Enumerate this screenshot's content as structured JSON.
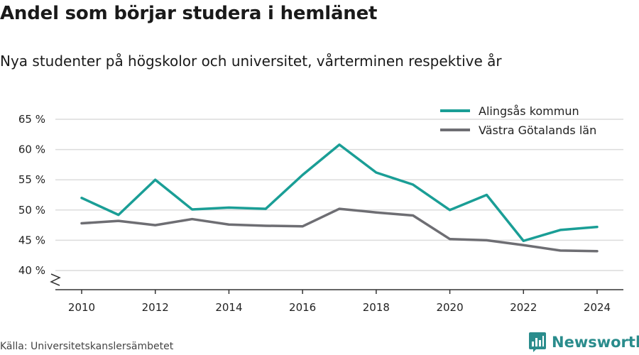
{
  "title": "Andel som börjar studera i hemlänet",
  "subtitle": "Nya studenter på högskolor och universitet, vårterminen respektive år",
  "source": "Källa: Universitetskanslersämbetet",
  "brand": "Newsworthy",
  "chart_data": {
    "type": "line",
    "x": [
      2010,
      2011,
      2012,
      2013,
      2014,
      2015,
      2016,
      2017,
      2018,
      2019,
      2020,
      2021,
      2022,
      2023,
      2024
    ],
    "series": [
      {
        "name": "Alingsås kommun",
        "color": "#1a9e96",
        "values": [
          52.0,
          49.2,
          55.0,
          50.1,
          50.4,
          50.2,
          55.8,
          60.8,
          56.2,
          54.2,
          50.0,
          52.5,
          44.9,
          46.7,
          47.2
        ]
      },
      {
        "name": "Västra Götalands län",
        "color": "#6e6e73",
        "values": [
          47.8,
          48.2,
          47.5,
          48.5,
          47.6,
          47.4,
          47.3,
          50.2,
          49.6,
          49.1,
          45.2,
          45.0,
          44.2,
          43.3,
          43.2
        ]
      }
    ],
    "ylim": [
      40,
      65
    ],
    "yticks": [
      40,
      45,
      50,
      55,
      60,
      65
    ],
    "ytick_labels": [
      "40 %",
      "45 %",
      "50 %",
      "55 %",
      "60 %",
      "65 %"
    ],
    "xticks": [
      2010,
      2012,
      2014,
      2016,
      2018,
      2020,
      2022,
      2024
    ],
    "xtick_labels": [
      "2010",
      "2012",
      "2014",
      "2016",
      "2018",
      "2020",
      "2022",
      "2024"
    ],
    "grid": true,
    "legend_position": "top-right",
    "y_axis_break": true
  }
}
